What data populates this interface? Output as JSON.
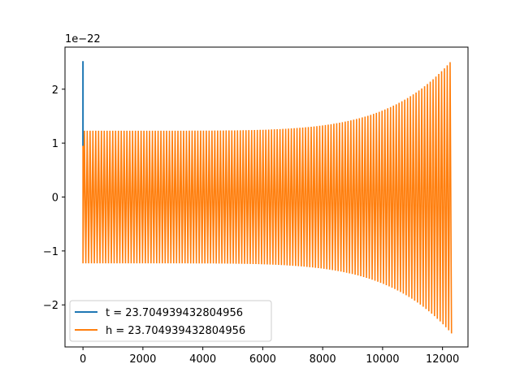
{
  "chart_data": {
    "type": "line",
    "title": "",
    "xlabel": "",
    "ylabel": "",
    "offset_text": "1e−22",
    "xlim": [
      -600,
      12850
    ],
    "ylim": [
      -2.78,
      2.78
    ],
    "x_ticks": [
      0,
      2000,
      4000,
      6000,
      8000,
      10000,
      12000
    ],
    "x_tick_labels": [
      "0",
      "2000",
      "4000",
      "6000",
      "8000",
      "10000",
      "12000"
    ],
    "y_ticks": [
      -2,
      -1,
      0,
      1,
      2
    ],
    "y_tick_labels": [
      "−2",
      "−1",
      "0",
      "1",
      "2"
    ],
    "grid": false,
    "legend_position": "lower-left",
    "series": [
      {
        "name": "t = 23.704939432804956",
        "color": "#1f77b4",
        "kind": "spike",
        "x": [
          0,
          0,
          0
        ],
        "y": [
          0.95,
          2.52,
          1.0
        ]
      },
      {
        "name": "h = 23.704939432804956",
        "color": "#ff7f0e",
        "kind": "chirp",
        "x_start": 0,
        "x_end": 12300,
        "start_amplitude": 1.23,
        "end_amplitude": 2.53,
        "initial_value": 0.95
      }
    ]
  }
}
